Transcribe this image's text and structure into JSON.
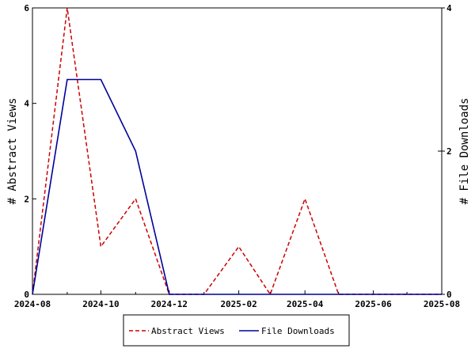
{
  "chart_data": {
    "type": "line",
    "x_axis": {
      "type": "date",
      "range": [
        "2024-08-01",
        "2025-08-01"
      ],
      "tick_labels": [
        "2024-08",
        "2024-10",
        "2024-12",
        "2025-02",
        "2025-04",
        "2025-06",
        "2025-08"
      ],
      "tick_dates": [
        "2024-08-01",
        "2024-10-01",
        "2024-12-01",
        "2025-02-01",
        "2025-04-01",
        "2025-06-01",
        "2025-08-01"
      ]
    },
    "y_left": {
      "label": "# Abstract Views",
      "range": [
        0,
        6
      ],
      "ticks": [
        0,
        2,
        4,
        6
      ]
    },
    "y_right": {
      "label": "# File Downloads",
      "range": [
        0,
        4
      ],
      "ticks": [
        0,
        2,
        4
      ]
    },
    "grid": false,
    "legend_position": "bottom",
    "series": [
      {
        "name": "Abstract Views",
        "axis": "left",
        "color": "#cc0000",
        "style": "dashed",
        "x": [
          "2024-08-01",
          "2024-09-01",
          "2024-10-01",
          "2024-11-01",
          "2024-12-01",
          "2025-01-01",
          "2025-02-01",
          "2025-03-01",
          "2025-04-01",
          "2025-05-01",
          "2025-06-01",
          "2025-07-01",
          "2025-08-01"
        ],
        "values": [
          0,
          6,
          1,
          2,
          0,
          0,
          1,
          0,
          2,
          0,
          0,
          0,
          0
        ]
      },
      {
        "name": "File Downloads",
        "axis": "right",
        "color": "#000099",
        "style": "solid",
        "x": [
          "2024-08-01",
          "2024-09-01",
          "2024-10-01",
          "2024-11-01",
          "2024-12-01",
          "2025-01-01",
          "2025-02-01",
          "2025-03-01",
          "2025-04-01",
          "2025-05-01",
          "2025-06-01",
          "2025-07-01",
          "2025-08-01"
        ],
        "values": [
          0,
          3,
          3,
          2,
          0,
          0,
          0,
          0,
          0,
          0,
          0,
          0,
          0
        ]
      }
    ]
  }
}
